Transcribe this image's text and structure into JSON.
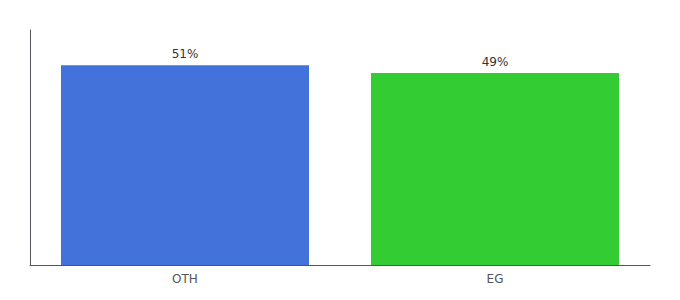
{
  "chart_data": {
    "type": "bar",
    "categories": [
      "OTH",
      "EG"
    ],
    "values": [
      51,
      49
    ],
    "value_labels": [
      "51%",
      "49%"
    ],
    "colors": [
      "#4472db",
      "#33cc33"
    ],
    "ylim": [
      0,
      60
    ],
    "grid": false,
    "data_labels": true,
    "tick_labels": "x"
  }
}
